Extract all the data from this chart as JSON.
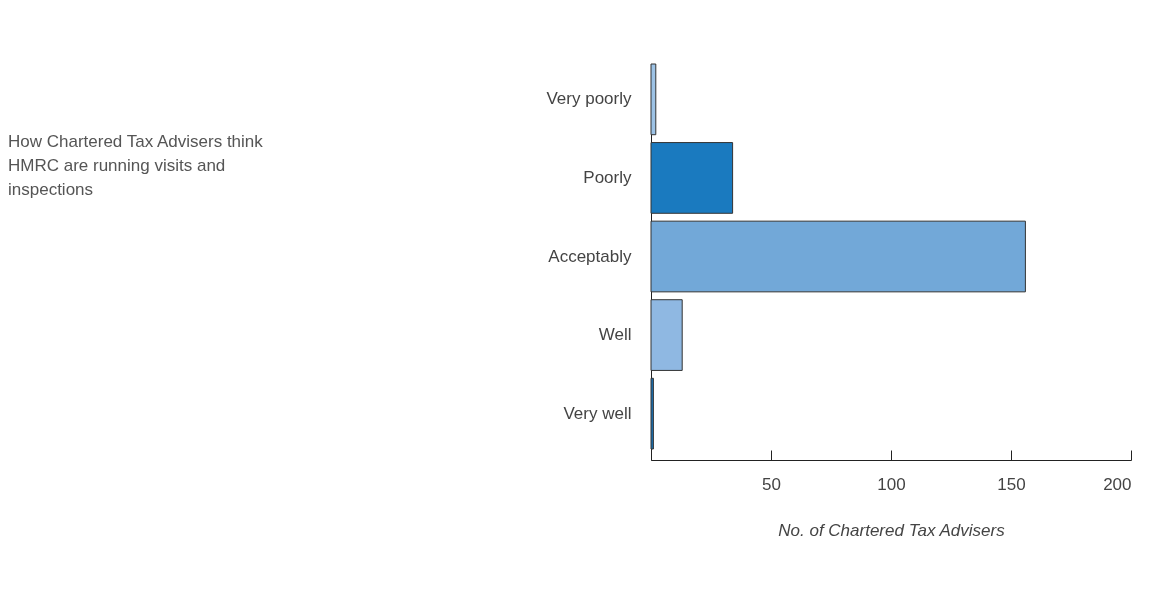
{
  "chart_data": {
    "type": "bar",
    "orientation": "horizontal",
    "title": "How Chartered Tax Advisers think HMRC are running visits and inspections",
    "xlabel": "No. of Chartered Tax Advisers",
    "categories": [
      "Very poorly",
      "Poorly",
      "Acceptably",
      "Well",
      "Very well"
    ],
    "values": [
      2,
      34,
      156,
      13,
      1
    ],
    "colors": [
      "#9dc3e6",
      "#1a7abf",
      "#72a8d8",
      "#8fb8e2",
      "#1a6fb0"
    ],
    "xlim": [
      0,
      200
    ],
    "xticks": [
      {
        "value": 0,
        "label": null
      },
      50,
      100,
      150,
      200
    ],
    "grid": false
  }
}
